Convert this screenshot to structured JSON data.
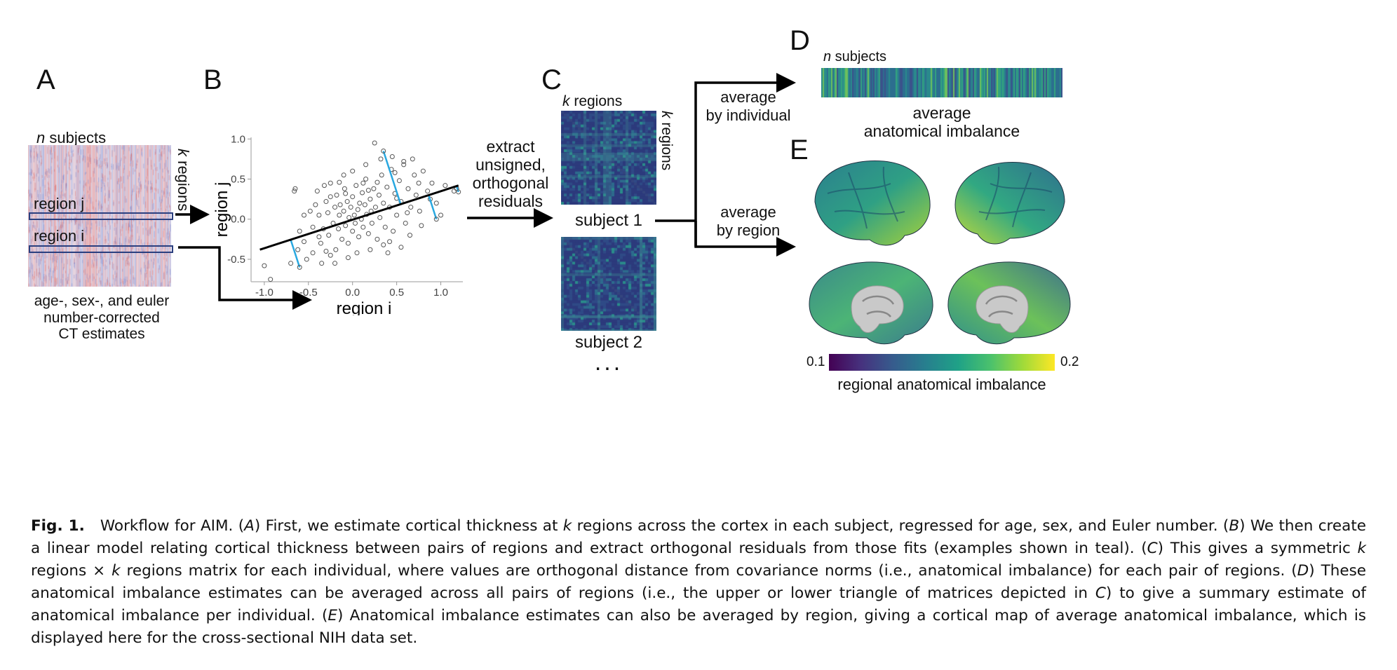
{
  "panels": {
    "A": {
      "letter": "A",
      "top_label_n": "n",
      "top_label_rest": " subjects",
      "side_label_k": "k",
      "side_label_rest": " regions",
      "region_j": "region j",
      "region_i": "region i",
      "caption_lines": [
        "age-, sex-, and euler",
        "number-corrected",
        "CT estimates"
      ]
    },
    "B": {
      "letter": "B",
      "xlabel": "region i",
      "ylabel": "region j"
    },
    "C": {
      "letter": "C",
      "arrow_text": [
        "extract",
        "unsigned,",
        "orthogonal",
        "residuals"
      ],
      "top_k": "k",
      "top_rest": " regions",
      "side_k": "k",
      "side_rest": " regions",
      "subject1": "subject 1",
      "subject2": "subject 2",
      "ellipsis": "..."
    },
    "D": {
      "letter": "D",
      "n": "n",
      "n_rest": " subjects",
      "branch_label": [
        "average",
        "by individual"
      ],
      "bar_label": [
        "average",
        "anatomical imbalance"
      ]
    },
    "E": {
      "letter": "E",
      "branch_label": [
        "average",
        "by region"
      ],
      "colorbar_min": "0.1",
      "colorbar_max": "0.2",
      "colorbar_label": "regional anatomical imbalance"
    }
  },
  "chart_data": {
    "type": "scatter",
    "xlabel": "region i",
    "ylabel": "region j",
    "xlim": [
      -1.15,
      1.25
    ],
    "ylim": [
      -0.78,
      1.02
    ],
    "xticks": [
      "-1.0",
      "-0.5",
      "0.0",
      "0.5",
      "1.0"
    ],
    "yticks": [
      "-0.5",
      "0.0",
      "0.5",
      "1.0"
    ],
    "fit_line": {
      "x": [
        -1.05,
        1.2
      ],
      "y": [
        -0.38,
        0.42
      ]
    },
    "residuals_shown": [
      {
        "x": 0.35,
        "y": 0.85
      },
      {
        "x": 0.95,
        "y": 0.0
      },
      {
        "x": -0.6,
        "y": -0.6
      },
      {
        "x": 1.2,
        "y": 0.34
      }
    ],
    "points": [
      [
        -1.0,
        -0.58
      ],
      [
        -0.93,
        -0.75
      ],
      [
        -0.7,
        -0.55
      ],
      [
        -0.62,
        -0.38
      ],
      [
        -0.65,
        0.38
      ],
      [
        -0.66,
        0.35
      ],
      [
        -0.55,
        -0.28
      ],
      [
        -0.52,
        -0.5
      ],
      [
        -0.6,
        -0.15
      ],
      [
        -0.45,
        -0.42
      ],
      [
        -0.42,
        0.18
      ],
      [
        -0.38,
        0.05
      ],
      [
        -0.36,
        -0.3
      ],
      [
        -0.33,
        -0.12
      ],
      [
        -0.3,
        0.22
      ],
      [
        -0.28,
        0.08
      ],
      [
        -0.27,
        -0.2
      ],
      [
        -0.25,
        0.45
      ],
      [
        -0.22,
        -0.05
      ],
      [
        -0.2,
        0.15
      ],
      [
        -0.19,
        -0.38
      ],
      [
        -0.18,
        0.3
      ],
      [
        -0.16,
        -0.12
      ],
      [
        -0.15,
        0.05
      ],
      [
        -0.14,
        0.18
      ],
      [
        -0.12,
        -0.25
      ],
      [
        -0.1,
        0.1
      ],
      [
        -0.09,
        0.38
      ],
      [
        -0.08,
        -0.08
      ],
      [
        -0.06,
        0.22
      ],
      [
        -0.05,
        -0.3
      ],
      [
        -0.04,
        0.02
      ],
      [
        -0.02,
        0.15
      ],
      [
        0.0,
        -0.15
      ],
      [
        0.0,
        0.28
      ],
      [
        0.02,
        0.05
      ],
      [
        0.03,
        -0.05
      ],
      [
        0.04,
        0.42
      ],
      [
        0.06,
        0.12
      ],
      [
        0.07,
        -0.22
      ],
      [
        0.08,
        0.2
      ],
      [
        0.1,
        0.0
      ],
      [
        0.11,
        0.33
      ],
      [
        0.12,
        -0.1
      ],
      [
        0.14,
        0.18
      ],
      [
        0.15,
        0.5
      ],
      [
        0.16,
        0.06
      ],
      [
        0.18,
        -0.18
      ],
      [
        0.2,
        0.25
      ],
      [
        0.21,
        0.1
      ],
      [
        0.22,
        -0.05
      ],
      [
        0.24,
        0.38
      ],
      [
        0.26,
        0.15
      ],
      [
        0.28,
        -0.25
      ],
      [
        0.3,
        0.3
      ],
      [
        0.31,
        0.02
      ],
      [
        0.33,
        0.55
      ],
      [
        0.35,
        0.2
      ],
      [
        0.37,
        -0.1
      ],
      [
        0.39,
        0.4
      ],
      [
        0.42,
        0.15
      ],
      [
        0.44,
        0.62
      ],
      [
        0.46,
        -0.15
      ],
      [
        0.48,
        0.32
      ],
      [
        0.5,
        0.05
      ],
      [
        0.53,
        0.48
      ],
      [
        0.55,
        0.22
      ],
      [
        0.58,
        0.68
      ],
      [
        0.6,
        -0.05
      ],
      [
        0.63,
        0.38
      ],
      [
        0.66,
        0.15
      ],
      [
        0.7,
        0.55
      ],
      [
        0.72,
        0.3
      ],
      [
        0.76,
        0.1
      ],
      [
        0.8,
        0.6
      ],
      [
        0.85,
        0.35
      ],
      [
        0.88,
        0.25
      ],
      [
        0.9,
        0.45
      ],
      [
        0.95,
        0.2
      ],
      [
        1.0,
        0.05
      ],
      [
        1.05,
        0.42
      ],
      [
        1.15,
        0.35
      ],
      [
        1.18,
        0.38
      ],
      [
        0.25,
        0.95
      ],
      [
        0.45,
        0.78
      ],
      [
        0.58,
        0.72
      ],
      [
        0.68,
        0.75
      ],
      [
        -0.35,
        -0.55
      ],
      [
        -0.25,
        -0.45
      ],
      [
        0.05,
        -0.42
      ],
      [
        0.2,
        -0.38
      ],
      [
        0.35,
        -0.32
      ],
      [
        0.55,
        -0.35
      ],
      [
        -0.48,
        0.1
      ],
      [
        -0.55,
        0.05
      ],
      [
        -0.4,
        0.35
      ],
      [
        -0.1,
        0.55
      ],
      [
        0.0,
        0.6
      ],
      [
        0.15,
        0.68
      ],
      [
        0.32,
        0.75
      ],
      [
        -0.2,
        -0.55
      ],
      [
        -0.05,
        -0.48
      ],
      [
        0.4,
        -0.42
      ],
      [
        0.65,
        -0.2
      ],
      [
        0.78,
        -0.08
      ],
      [
        -0.32,
        0.42
      ],
      [
        -0.15,
        0.46
      ],
      [
        0.48,
        0.58
      ],
      [
        0.75,
        0.45
      ],
      [
        0.62,
        0.08
      ],
      [
        -0.45,
        -0.1
      ],
      [
        -0.38,
        -0.22
      ],
      [
        -0.3,
        -0.4
      ],
      [
        -0.25,
        0.28
      ],
      [
        0.12,
        0.45
      ],
      [
        0.28,
        0.46
      ],
      [
        0.5,
        0.26
      ],
      [
        0.42,
        -0.28
      ],
      [
        0.18,
        0.36
      ],
      [
        -0.08,
        0.32
      ]
    ]
  },
  "caption": {
    "fig": "Fig. 1.",
    "text_html": "Workflow for AIM. (<i>A</i>) First, we estimate cortical thickness at <i>k</i> regions across the cortex in each subject, regressed for age, sex, and Euler number. (<i>B</i>) We then create a linear model relating cortical thickness between pairs of regions and extract orthogonal residuals from those fits (examples shown in teal). (<i>C</i>) This gives a symmetric <i>k</i> regions × <i>k</i> regions matrix for each individual, where values are orthogonal distance from covariance norms (i.e., anatomical imbalance) for each pair of regions. (<i>D</i>) These anatomical imbalance estimates can be averaged across all pairs of regions (i.e., the upper or lower triangle of matrices depicted in <i>C</i>) to give a summary estimate of anatomical imbalance per individual. (<i>E</i>) Anatomical imbalance estimates can also be averaged by region, giving a cortical map of average anatomical imbalance, which is displayed here for the cross-sectional NIH data set."
  },
  "colors": {
    "red_blue_low": "#8ea0d8",
    "red_blue_high": "#e89a9a",
    "residual": "#29a8e0",
    "matrix_bg": "#2c3a78",
    "viridis": [
      "#440154",
      "#3b528b",
      "#21918c",
      "#5ec962",
      "#fde725"
    ]
  }
}
